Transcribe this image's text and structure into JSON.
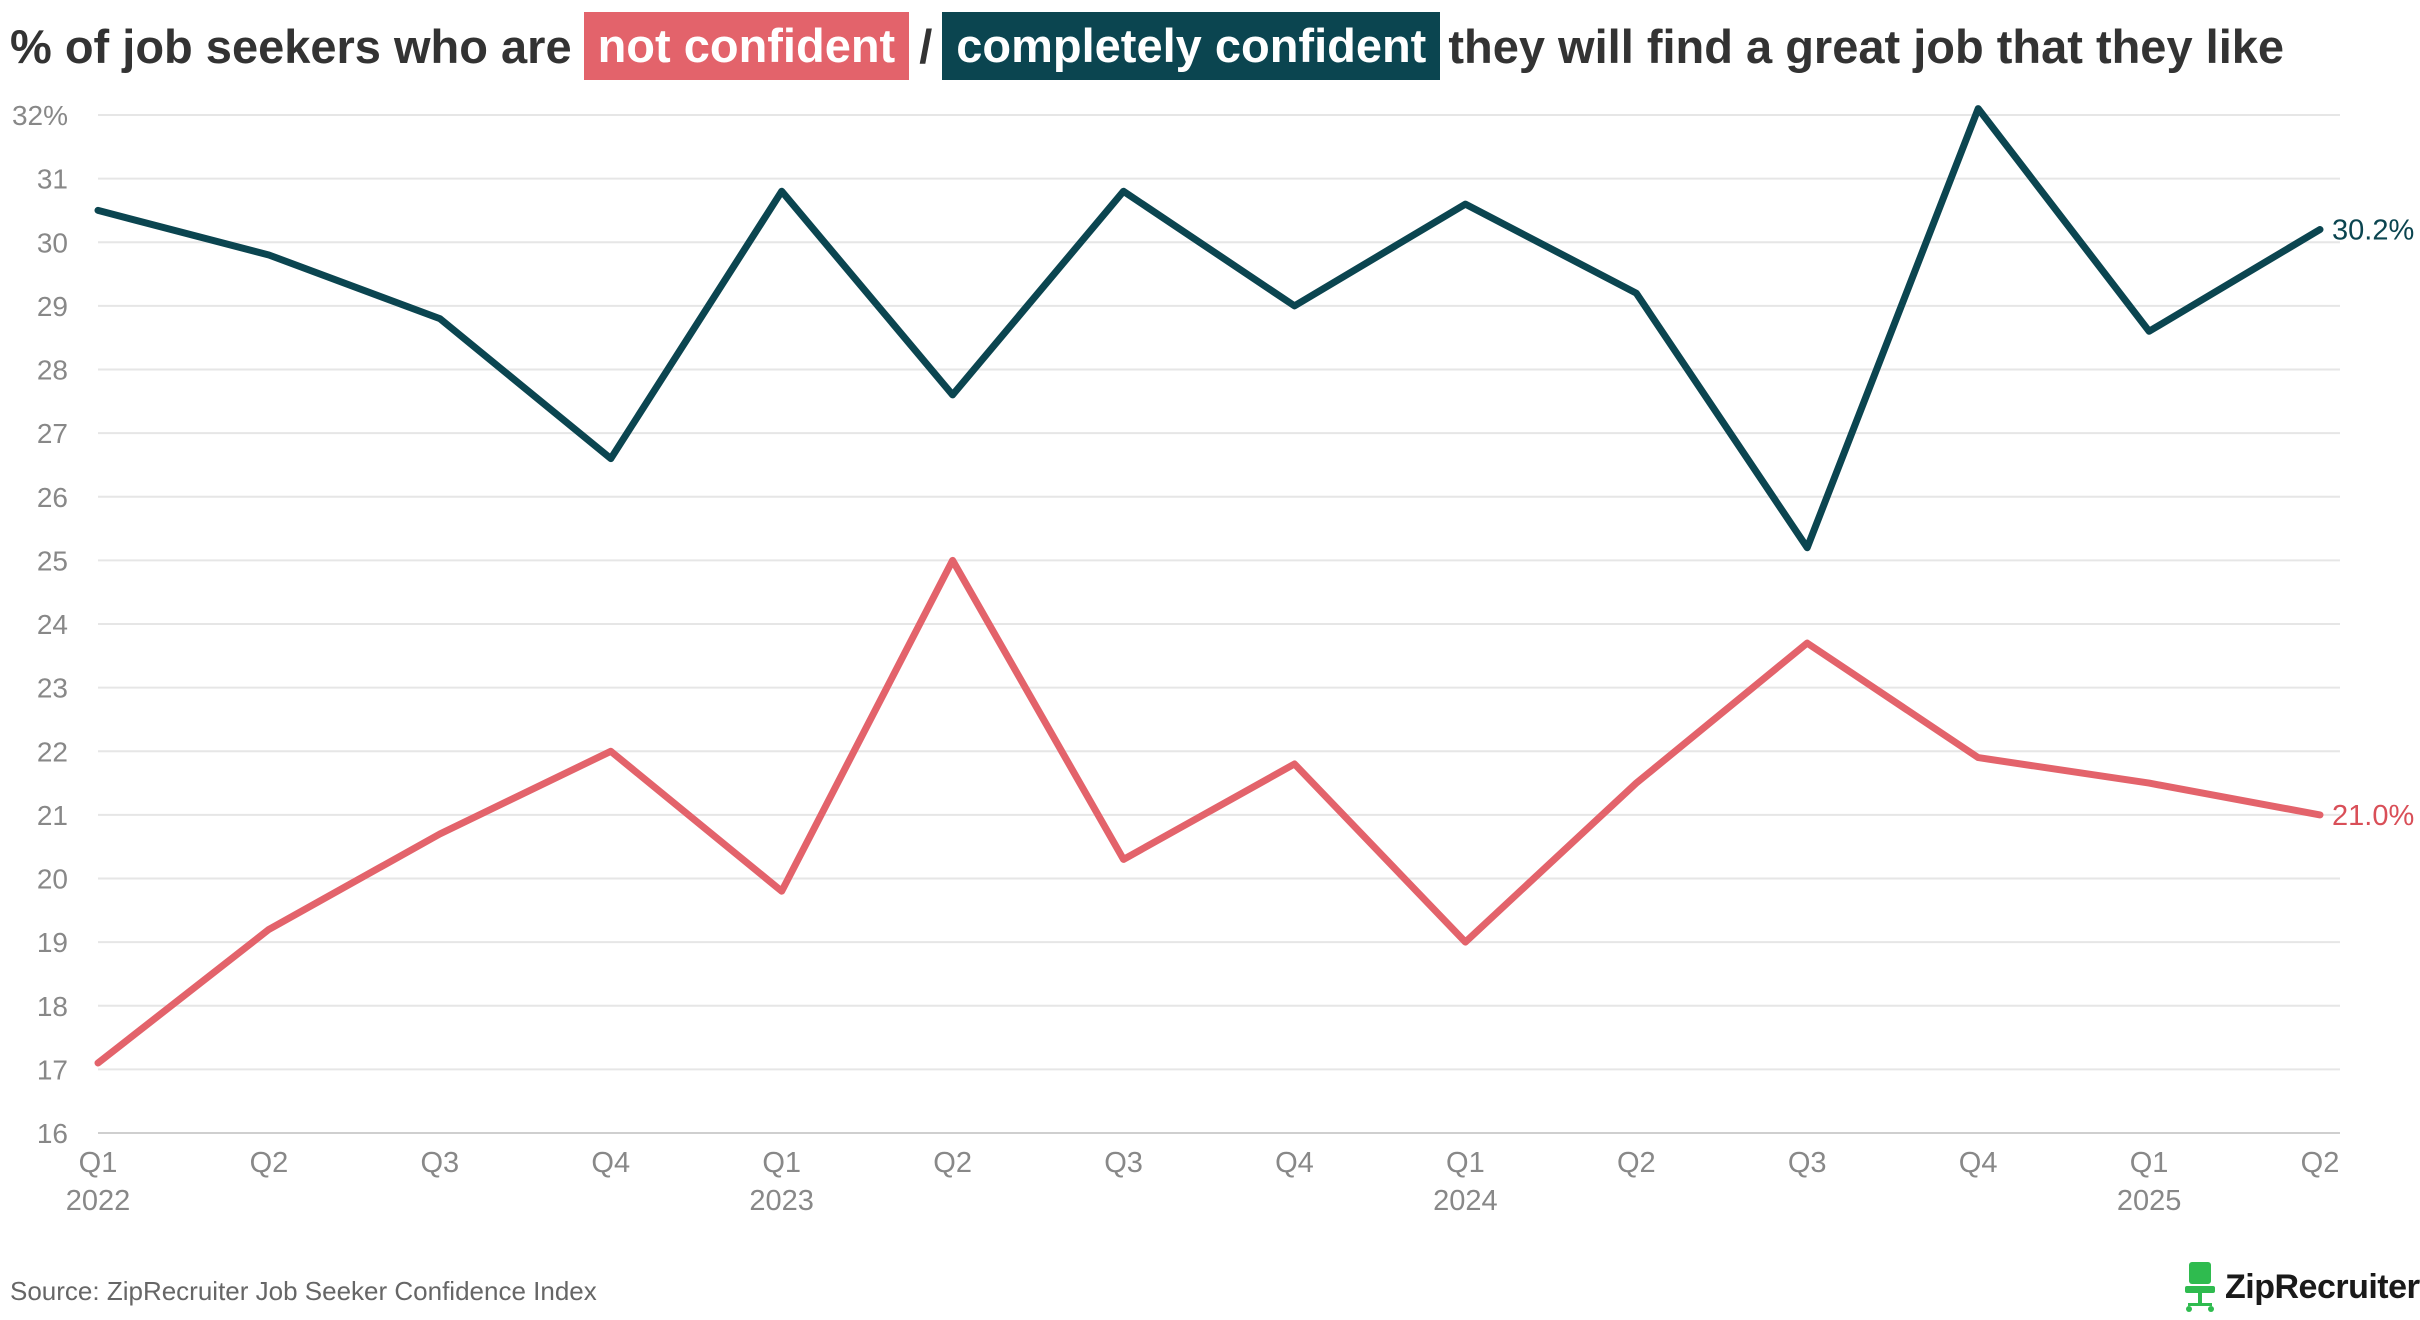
{
  "title": {
    "prefix": "% of job seekers who are",
    "highlight_1": "not confident",
    "separator": "/",
    "highlight_2": "completely confident",
    "suffix": "they will find a great job that they like"
  },
  "source": "Source: ZipRecruiter Job Seeker Confidence Index",
  "brand": {
    "name": "ZipRecruiter",
    "mark": "®",
    "icon": "chair-icon",
    "icon_color": "#2fbb4f"
  },
  "colors": {
    "not_confident": "#e3636b",
    "completely_confident": "#0b4550",
    "end_label_not_confident": "#d94f58"
  },
  "chart_data": {
    "type": "line",
    "categories": [
      "Q1 2022",
      "Q2 2022",
      "Q3 2022",
      "Q4 2022",
      "Q1 2023",
      "Q2 2023",
      "Q3 2023",
      "Q4 2023",
      "Q1 2024",
      "Q2 2024",
      "Q3 2024",
      "Q4 2024",
      "Q1 2025",
      "Q2 2025"
    ],
    "tick_labels": [
      "Q1",
      "Q2",
      "Q3",
      "Q4",
      "Q1",
      "Q2",
      "Q3",
      "Q4",
      "Q1",
      "Q2",
      "Q3",
      "Q4",
      "Q1",
      "Q2"
    ],
    "year_labels": [
      {
        "index": 0,
        "label": "2022"
      },
      {
        "index": 4,
        "label": "2023"
      },
      {
        "index": 8,
        "label": "2024"
      },
      {
        "index": 12,
        "label": "2025"
      }
    ],
    "ylim": [
      16,
      32
    ],
    "yticks": [
      "16",
      "17",
      "18",
      "19",
      "20",
      "21",
      "22",
      "23",
      "24",
      "25",
      "26",
      "27",
      "28",
      "29",
      "30",
      "31",
      "32%"
    ],
    "grid": true,
    "series": [
      {
        "key": "completely_confident",
        "values": [
          30.5,
          29.8,
          28.8,
          26.6,
          30.8,
          27.6,
          30.8,
          29.0,
          30.6,
          29.2,
          25.2,
          32.1,
          28.6,
          30.2
        ],
        "end_label": "30.2%"
      },
      {
        "key": "not_confident",
        "values": [
          17.1,
          19.2,
          20.7,
          22.0,
          19.8,
          25.0,
          20.3,
          21.8,
          19.0,
          21.5,
          23.7,
          21.9,
          21.5,
          21.0
        ],
        "end_label": "21.0%"
      }
    ]
  }
}
